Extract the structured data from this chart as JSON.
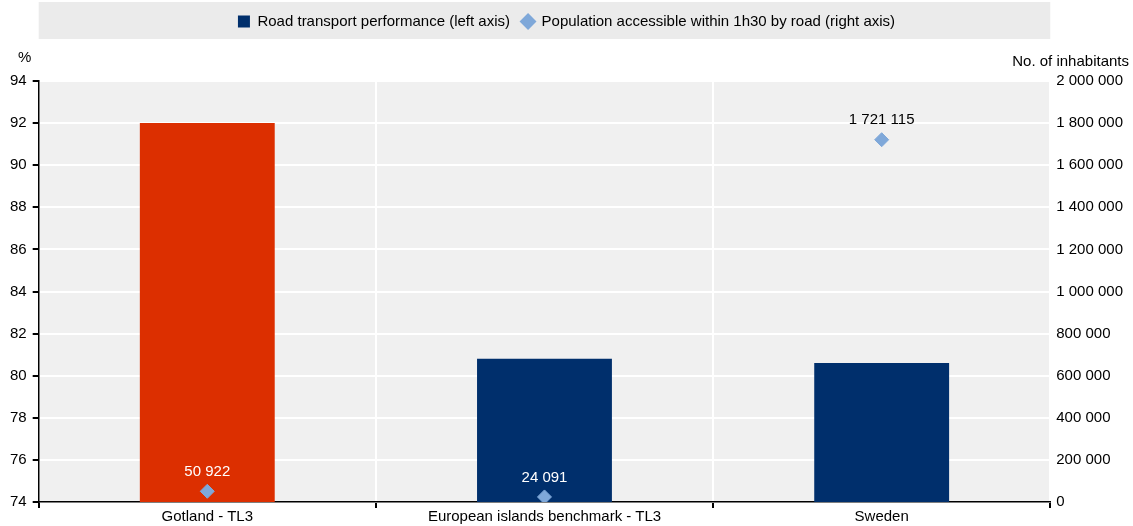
{
  "chart_data": {
    "type": "bar",
    "categories": [
      "Gotland - TL3",
      "European islands benchmark - TL3",
      "Sweden"
    ],
    "ylabel": "%",
    "y2label": "No. of inhabitants",
    "ylim": [
      74,
      94
    ],
    "yticks": [
      74,
      76,
      78,
      80,
      82,
      84,
      86,
      88,
      90,
      92,
      94
    ],
    "y2lim": [
      0,
      2000000
    ],
    "y2ticks": [
      {
        "value": 0,
        "label": "0"
      },
      {
        "value": 200000,
        "label": "200 000"
      },
      {
        "value": 400000,
        "label": "400 000"
      },
      {
        "value": 600000,
        "label": "600 000"
      },
      {
        "value": 800000,
        "label": "800 000"
      },
      {
        "value": 1000000,
        "label": "1 000 000"
      },
      {
        "value": 1200000,
        "label": "1 200 000"
      },
      {
        "value": 1400000,
        "label": "1 400 000"
      },
      {
        "value": 1600000,
        "label": "1 600 000"
      },
      {
        "value": 1800000,
        "label": "1 800 000"
      },
      {
        "value": 2000000,
        "label": "2 000 000"
      }
    ],
    "grid": true,
    "legend": "top",
    "series": [
      {
        "name": "Road transport performance (left axis)",
        "color": "#002f6c",
        "colors": [
          "#dc2f00",
          "#002f6c",
          "#002f6c"
        ],
        "values": [
          92.0,
          80.8,
          80.6
        ]
      },
      {
        "name": "Population accessible within 1h30 by road (right axis)",
        "type": "scatter",
        "axis": "y2",
        "marker": "diamond",
        "color": "#7fa8d9",
        "values": [
          50922,
          24091,
          1721115
        ],
        "value_labels": [
          "50 922",
          "24 091",
          "1 721 115"
        ]
      }
    ]
  }
}
